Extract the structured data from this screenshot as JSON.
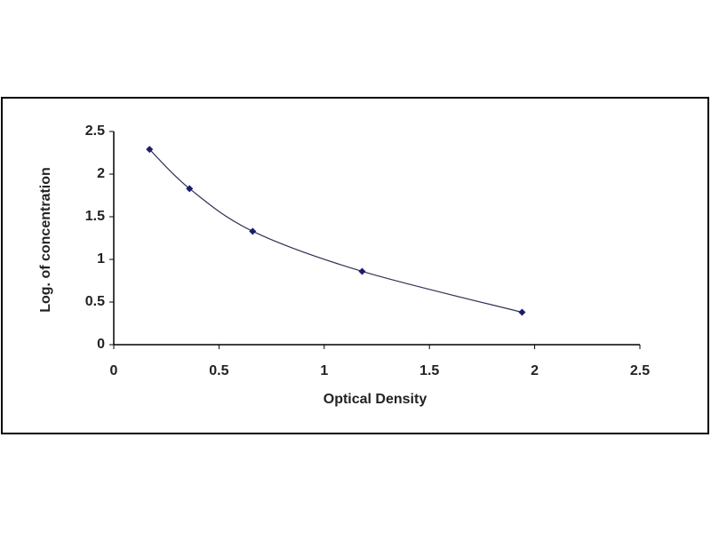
{
  "chart_data": {
    "type": "line",
    "smooth": true,
    "marker": "diamond",
    "xlabel": "Optical Density",
    "ylabel": "Log. of concentration",
    "x": [
      0.17,
      0.36,
      0.66,
      1.18,
      1.94
    ],
    "series": [
      {
        "color": "#1c1c6b",
        "values": [
          2.29,
          1.83,
          1.33,
          0.86,
          0.38
        ]
      }
    ],
    "xlim": [
      0,
      2.5
    ],
    "xticks": [
      0,
      0.5,
      1,
      1.5,
      2,
      2.5
    ],
    "ylim": [
      0,
      2.5
    ],
    "yticks": [
      0,
      0.5,
      1,
      1.5,
      2,
      2.5
    ]
  }
}
